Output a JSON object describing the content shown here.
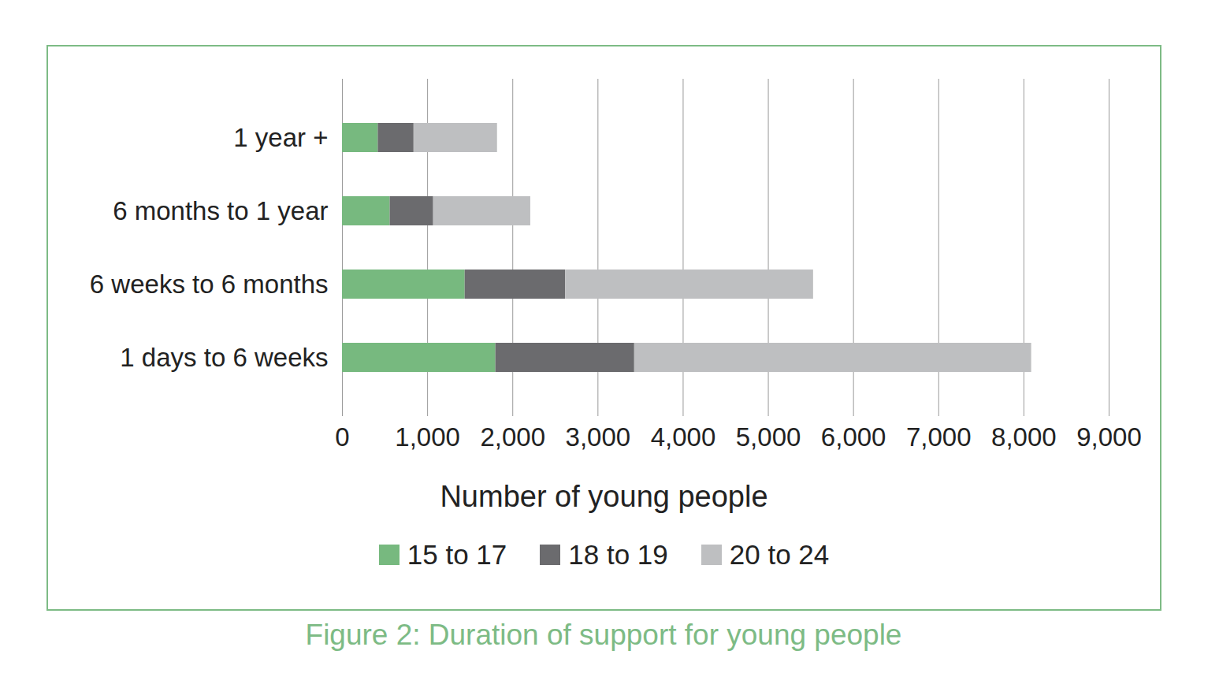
{
  "chart_data": {
    "type": "bar",
    "title": "Figure 2: Duration of support for young people",
    "orientation": "horizontal",
    "stacked": true,
    "categories": [
      "1 year +",
      "6 months to 1 year",
      "6 weeks to 6 months",
      "1 days to 6 weeks"
    ],
    "series": [
      {
        "name": "15 to 17",
        "color": "#77b97f",
        "values": [
          420,
          560,
          1440,
          1800
        ]
      },
      {
        "name": "18 to 19",
        "color": "#6b6b6e",
        "values": [
          420,
          510,
          1180,
          1630
        ]
      },
      {
        "name": "20 to 24",
        "color": "#bebfc1",
        "values": [
          980,
          1140,
          2910,
          4660
        ]
      }
    ],
    "xlabel": "Number of young people",
    "xlim": [
      0,
      9000
    ],
    "xticks": [
      0,
      {
        "value": 1000,
        "label": "1,000"
      },
      {
        "value": 2000,
        "label": "2,000"
      },
      {
        "value": 3000,
        "label": "3,000"
      },
      {
        "value": 4000,
        "label": "4,000"
      },
      {
        "value": 5000,
        "label": "5,000"
      },
      {
        "value": 6000,
        "label": "6,000"
      },
      {
        "value": 7000,
        "label": "7,000"
      },
      {
        "value": 8000,
        "label": "8,000"
      },
      {
        "value": 9000,
        "label": "9,000"
      }
    ],
    "grid": true,
    "legend": "bottom"
  }
}
